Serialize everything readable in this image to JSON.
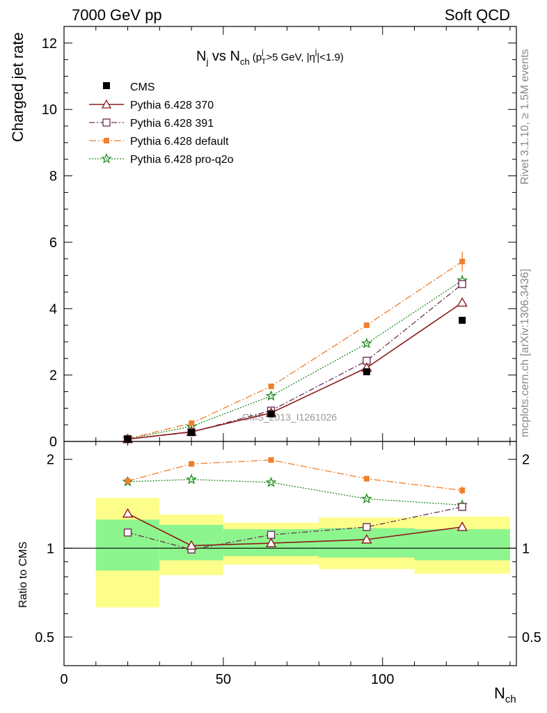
{
  "header": {
    "left": "7000 GeV pp",
    "right": "Soft QCD"
  },
  "side": {
    "rivet": "Rivet 3.1.10, ≥ 1.5M events",
    "mcplots": "mcplots.cern.ch [arXiv:1306.3436]"
  },
  "watermark": "CMS_2013_I1261026",
  "chart_data": {
    "type": "line",
    "title_parts": {
      "main": "N",
      "main_sub": "j",
      "vs": " vs N",
      "vs_sub": "ch",
      "cut_open": " (p",
      "cut_sup": "j",
      "cut_sub": "T",
      "cut_mid": ">5 GeV, |η",
      "cut_sup2": "j",
      "cut_end": "|<1.9)"
    },
    "ylabel": "Charged jet rate",
    "ratio_ylabel": "Ratio to CMS",
    "xlabel_main": "N",
    "xlabel_sub": "ch",
    "xlim": [
      0,
      142
    ],
    "ylim": [
      0,
      12.5
    ],
    "ratio_ylim": [
      0.4,
      2.3
    ],
    "ratio_log": true,
    "x_ticks": [
      0,
      50,
      100
    ],
    "y_ticks": [
      0,
      2,
      4,
      6,
      8,
      10,
      12
    ],
    "ratio_ticks": [
      0.5,
      1,
      2
    ],
    "bin_edges": [
      10,
      30,
      50,
      80,
      110,
      140
    ],
    "x": [
      20,
      40,
      65,
      95,
      125
    ],
    "data": {
      "name": "CMS",
      "values": [
        0.07,
        0.27,
        0.83,
        2.1,
        3.65
      ],
      "band_inner": [
        [
          0.84,
          1.25
        ],
        [
          0.91,
          1.2
        ],
        [
          0.94,
          1.16
        ],
        [
          0.93,
          1.17
        ],
        [
          0.91,
          1.16
        ]
      ],
      "band_outer": [
        [
          0.63,
          1.48
        ],
        [
          0.81,
          1.3
        ],
        [
          0.88,
          1.22
        ],
        [
          0.85,
          1.27
        ],
        [
          0.82,
          1.28
        ]
      ]
    },
    "series": [
      {
        "name": "Pythia 6.428 370",
        "color": "#8b1a1a",
        "marker": "triangle-open",
        "dash": "",
        "values": [
          0.07,
          0.29,
          0.86,
          2.22,
          4.18
        ],
        "ratio": [
          1.31,
          1.02,
          1.04,
          1.07,
          1.18
        ]
      },
      {
        "name": "Pythia 6.428 391",
        "color": "#6b3050",
        "marker": "square-open",
        "dash": "8,3,2,3",
        "values": [
          0.07,
          0.28,
          0.93,
          2.43,
          4.74
        ],
        "ratio": [
          1.13,
          0.99,
          1.11,
          1.18,
          1.38
        ]
      },
      {
        "name": "Pythia 6.428 default",
        "color": "#f07f2a",
        "marker": "square-filled",
        "dash": "10,3,2,3",
        "values": [
          0.08,
          0.55,
          1.66,
          3.5,
          5.42
        ],
        "ratio": [
          1.69,
          1.93,
          1.99,
          1.72,
          1.57
        ]
      },
      {
        "name": "Pythia 6.428 pro-q2o",
        "color": "#1a8a1a",
        "marker": "star",
        "dash": "2,2",
        "values": [
          0.08,
          0.45,
          1.37,
          2.95,
          4.85
        ],
        "ratio": [
          1.68,
          1.71,
          1.67,
          1.47,
          1.4
        ]
      }
    ]
  }
}
